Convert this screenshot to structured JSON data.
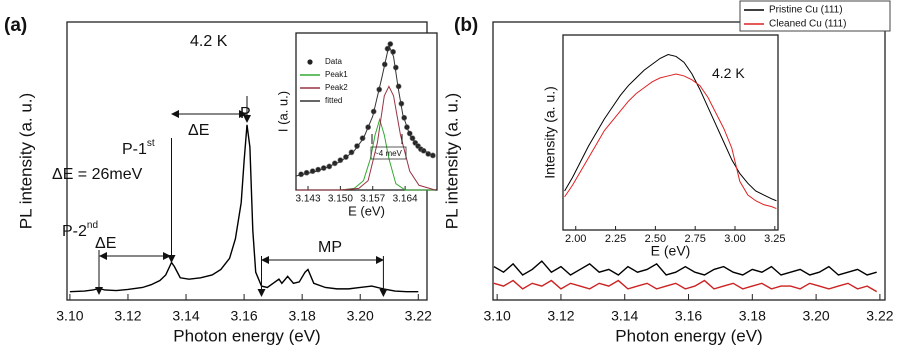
{
  "chart_data": [
    {
      "type": "line",
      "label": "(a)",
      "xlabel": "Photon energy (eV)",
      "ylabel": "PL intensity (a. u.)",
      "xlim": [
        3.099,
        3.223
      ],
      "ylim": [
        0,
        1
      ],
      "xticks": [
        {
          "value": 3.1,
          "label": "3.10"
        },
        {
          "value": 3.12,
          "label": "3.12"
        },
        {
          "value": 3.14,
          "label": "3.14"
        },
        {
          "value": 3.16,
          "label": "3.16"
        },
        {
          "value": 3.18,
          "label": "3.18"
        },
        {
          "value": 3.2,
          "label": "3.20"
        },
        {
          "value": 3.22,
          "label": "3.22"
        }
      ],
      "annotations": [
        {
          "text": "4.2 K"
        },
        {
          "text": "P-1",
          "sup": "st"
        },
        {
          "text": "ΔE"
        },
        {
          "text": "P"
        },
        {
          "text": "ΔE = 26meV"
        },
        {
          "text": "P-2",
          "sup": "nd"
        },
        {
          "text": "ΔE"
        },
        {
          "text": "MP"
        }
      ],
      "x": [
        3.1,
        3.105,
        3.108,
        3.11,
        3.112,
        3.116,
        3.12,
        3.125,
        3.128,
        3.131,
        3.133,
        3.135,
        3.136,
        3.138,
        3.141,
        3.145,
        3.149,
        3.152,
        3.155,
        3.157,
        3.159,
        3.16,
        3.161,
        3.162,
        3.163,
        3.164,
        3.166,
        3.168,
        3.17,
        3.172,
        3.173,
        3.175,
        3.177,
        3.179,
        3.181,
        3.182,
        3.184,
        3.188,
        3.192,
        3.196,
        3.2,
        3.204,
        3.208,
        3.212,
        3.216,
        3.22
      ],
      "series": [
        {
          "color": "#000000",
          "values": [
            0.03,
            0.032,
            0.036,
            0.042,
            0.036,
            0.034,
            0.038,
            0.045,
            0.055,
            0.07,
            0.09,
            0.135,
            0.12,
            0.08,
            0.075,
            0.08,
            0.09,
            0.11,
            0.15,
            0.22,
            0.35,
            0.5,
            0.63,
            0.55,
            0.25,
            0.1,
            0.05,
            0.045,
            0.06,
            0.075,
            0.06,
            0.085,
            0.06,
            0.065,
            0.1,
            0.11,
            0.06,
            0.045,
            0.04,
            0.04,
            0.045,
            0.05,
            0.04,
            0.032,
            0.03,
            0.03
          ]
        }
      ]
    },
    {
      "type": "line",
      "xlabel": "E (eV)",
      "ylabel": "I (a. u.)",
      "xlim": [
        3.1404,
        3.1709
      ],
      "ylim": [
        0,
        1
      ],
      "xticks": [
        3.143,
        {
          "value": 3.15,
          "label": "3.150"
        },
        3.157,
        3.164
      ],
      "annotations": [
        {
          "text": "~4 meV"
        }
      ],
      "series": [
        {
          "name": "Data",
          "color": "#222222",
          "style": "markers",
          "x": [
            3.1415,
            3.1427,
            3.144,
            3.1452,
            3.1464,
            3.1476,
            3.1488,
            3.15,
            3.1512,
            3.1524,
            3.1536,
            3.1548,
            3.156,
            3.1572,
            3.1584,
            3.1596,
            3.1602,
            3.1608,
            3.1614,
            3.162,
            3.1626,
            3.1632,
            3.1638,
            3.1644,
            3.165,
            3.1656,
            3.1662,
            3.1668,
            3.1674,
            3.168,
            3.169,
            3.17
          ],
          "values": [
            0.1,
            0.11,
            0.12,
            0.13,
            0.14,
            0.15,
            0.17,
            0.19,
            0.21,
            0.24,
            0.28,
            0.33,
            0.4,
            0.5,
            0.64,
            0.8,
            0.9,
            0.93,
            0.88,
            0.78,
            0.66,
            0.55,
            0.46,
            0.4,
            0.36,
            0.33,
            0.3,
            0.28,
            0.26,
            0.25,
            0.23,
            0.22
          ]
        },
        {
          "name": "Peak1",
          "color": "#33aa33",
          "x": [
            3.1405,
            3.15,
            3.153,
            3.155,
            3.1565,
            3.1575,
            3.1585,
            3.1595,
            3.1605,
            3.162,
            3.164,
            3.1705
          ],
          "values": [
            0,
            0,
            0.01,
            0.06,
            0.2,
            0.35,
            0.45,
            0.35,
            0.2,
            0.04,
            0,
            0
          ]
        },
        {
          "name": "Peak2",
          "color": "#993344",
          "x": [
            3.1405,
            3.15,
            3.154,
            3.156,
            3.158,
            3.1595,
            3.1605,
            3.1615,
            3.163,
            3.165,
            3.167,
            3.1705
          ],
          "values": [
            0,
            0,
            0.01,
            0.06,
            0.3,
            0.6,
            0.66,
            0.6,
            0.35,
            0.12,
            0.03,
            0
          ]
        },
        {
          "name": "fitted",
          "color": "#333333",
          "x": [
            3.1405,
            3.145,
            3.15,
            3.153,
            3.155,
            3.157,
            3.159,
            3.1605,
            3.1615,
            3.1625,
            3.1635,
            3.165,
            3.167,
            3.1705
          ],
          "values": [
            0.09,
            0.12,
            0.18,
            0.25,
            0.33,
            0.47,
            0.72,
            0.92,
            0.85,
            0.65,
            0.48,
            0.35,
            0.27,
            0.21
          ]
        }
      ]
    },
    {
      "type": "line",
      "label": "(b)",
      "xlabel": "Photon energy (eV)",
      "ylabel": "PL intensity (a. u.)",
      "xlim": [
        3.0987,
        3.2216
      ],
      "ylim": [
        0,
        1
      ],
      "xticks": [
        {
          "value": 3.1,
          "label": "3.10"
        },
        {
          "value": 3.12,
          "label": "3.12"
        },
        {
          "value": 3.14,
          "label": "3.14"
        },
        {
          "value": 3.16,
          "label": "3.16"
        },
        {
          "value": 3.18,
          "label": "3.18"
        },
        {
          "value": 3.2,
          "label": "3.20"
        },
        {
          "value": 3.22,
          "label": "3.22"
        }
      ],
      "x": [
        3.099,
        3.102,
        3.105,
        3.108,
        3.111,
        3.114,
        3.117,
        3.12,
        3.123,
        3.126,
        3.129,
        3.132,
        3.135,
        3.138,
        3.141,
        3.144,
        3.147,
        3.15,
        3.153,
        3.156,
        3.159,
        3.162,
        3.165,
        3.168,
        3.171,
        3.174,
        3.177,
        3.18,
        3.183,
        3.186,
        3.189,
        3.192,
        3.195,
        3.198,
        3.201,
        3.204,
        3.207,
        3.21,
        3.213,
        3.216,
        3.219
      ],
      "series": [
        {
          "color": "#000000",
          "values": [
            0.12,
            0.1,
            0.13,
            0.09,
            0.11,
            0.14,
            0.1,
            0.12,
            0.09,
            0.11,
            0.13,
            0.1,
            0.11,
            0.09,
            0.12,
            0.1,
            0.11,
            0.13,
            0.09,
            0.1,
            0.12,
            0.1,
            0.09,
            0.11,
            0.12,
            0.1,
            0.09,
            0.11,
            0.1,
            0.12,
            0.09,
            0.1,
            0.11,
            0.09,
            0.1,
            0.12,
            0.09,
            0.1,
            0.11,
            0.09,
            0.1
          ]
        },
        {
          "color": "#cc2222",
          "values": [
            0.06,
            0.05,
            0.07,
            0.04,
            0.06,
            0.05,
            0.07,
            0.04,
            0.06,
            0.05,
            0.04,
            0.06,
            0.05,
            0.07,
            0.04,
            0.05,
            0.06,
            0.04,
            0.05,
            0.06,
            0.04,
            0.05,
            0.07,
            0.04,
            0.05,
            0.06,
            0.04,
            0.05,
            0.06,
            0.04,
            0.05,
            0.05,
            0.04,
            0.06,
            0.05,
            0.04,
            0.05,
            0.06,
            0.04,
            0.05,
            0.03
          ]
        }
      ]
    },
    {
      "type": "line",
      "xlabel": "E (eV)",
      "ylabel": "Intensity (a. u.)",
      "xlim": [
        1.92,
        3.27
      ],
      "ylim": [
        0,
        1
      ],
      "xticks": [
        {
          "value": 2,
          "label": "2.00"
        },
        2.25,
        {
          "value": 2.5,
          "label": "2.50"
        },
        2.75,
        {
          "value": 3,
          "label": "3.00"
        },
        3.25
      ],
      "annotations": [
        {
          "text": "4.2 K"
        }
      ],
      "x": [
        1.93,
        1.98,
        2.03,
        2.08,
        2.13,
        2.18,
        2.23,
        2.28,
        2.33,
        2.38,
        2.43,
        2.48,
        2.53,
        2.58,
        2.63,
        2.68,
        2.73,
        2.78,
        2.83,
        2.88,
        2.93,
        2.98,
        3.03,
        3.08,
        3.13,
        3.18,
        3.23,
        3.26
      ],
      "series": [
        {
          "name": "Pristine Cu (111)",
          "color": "#000000",
          "values": [
            0.2,
            0.27,
            0.35,
            0.43,
            0.5,
            0.57,
            0.63,
            0.69,
            0.74,
            0.78,
            0.82,
            0.85,
            0.88,
            0.9,
            0.89,
            0.86,
            0.8,
            0.72,
            0.63,
            0.54,
            0.45,
            0.36,
            0.29,
            0.24,
            0.2,
            0.18,
            0.16,
            0.15
          ]
        },
        {
          "name": "Cleaned Cu (111)",
          "color": "#dd2222",
          "values": [
            0.17,
            0.23,
            0.3,
            0.37,
            0.44,
            0.51,
            0.56,
            0.61,
            0.66,
            0.7,
            0.73,
            0.76,
            0.78,
            0.79,
            0.8,
            0.79,
            0.77,
            0.74,
            0.68,
            0.6,
            0.52,
            0.42,
            0.25,
            0.18,
            0.15,
            0.13,
            0.12,
            0.11
          ]
        }
      ]
    }
  ]
}
